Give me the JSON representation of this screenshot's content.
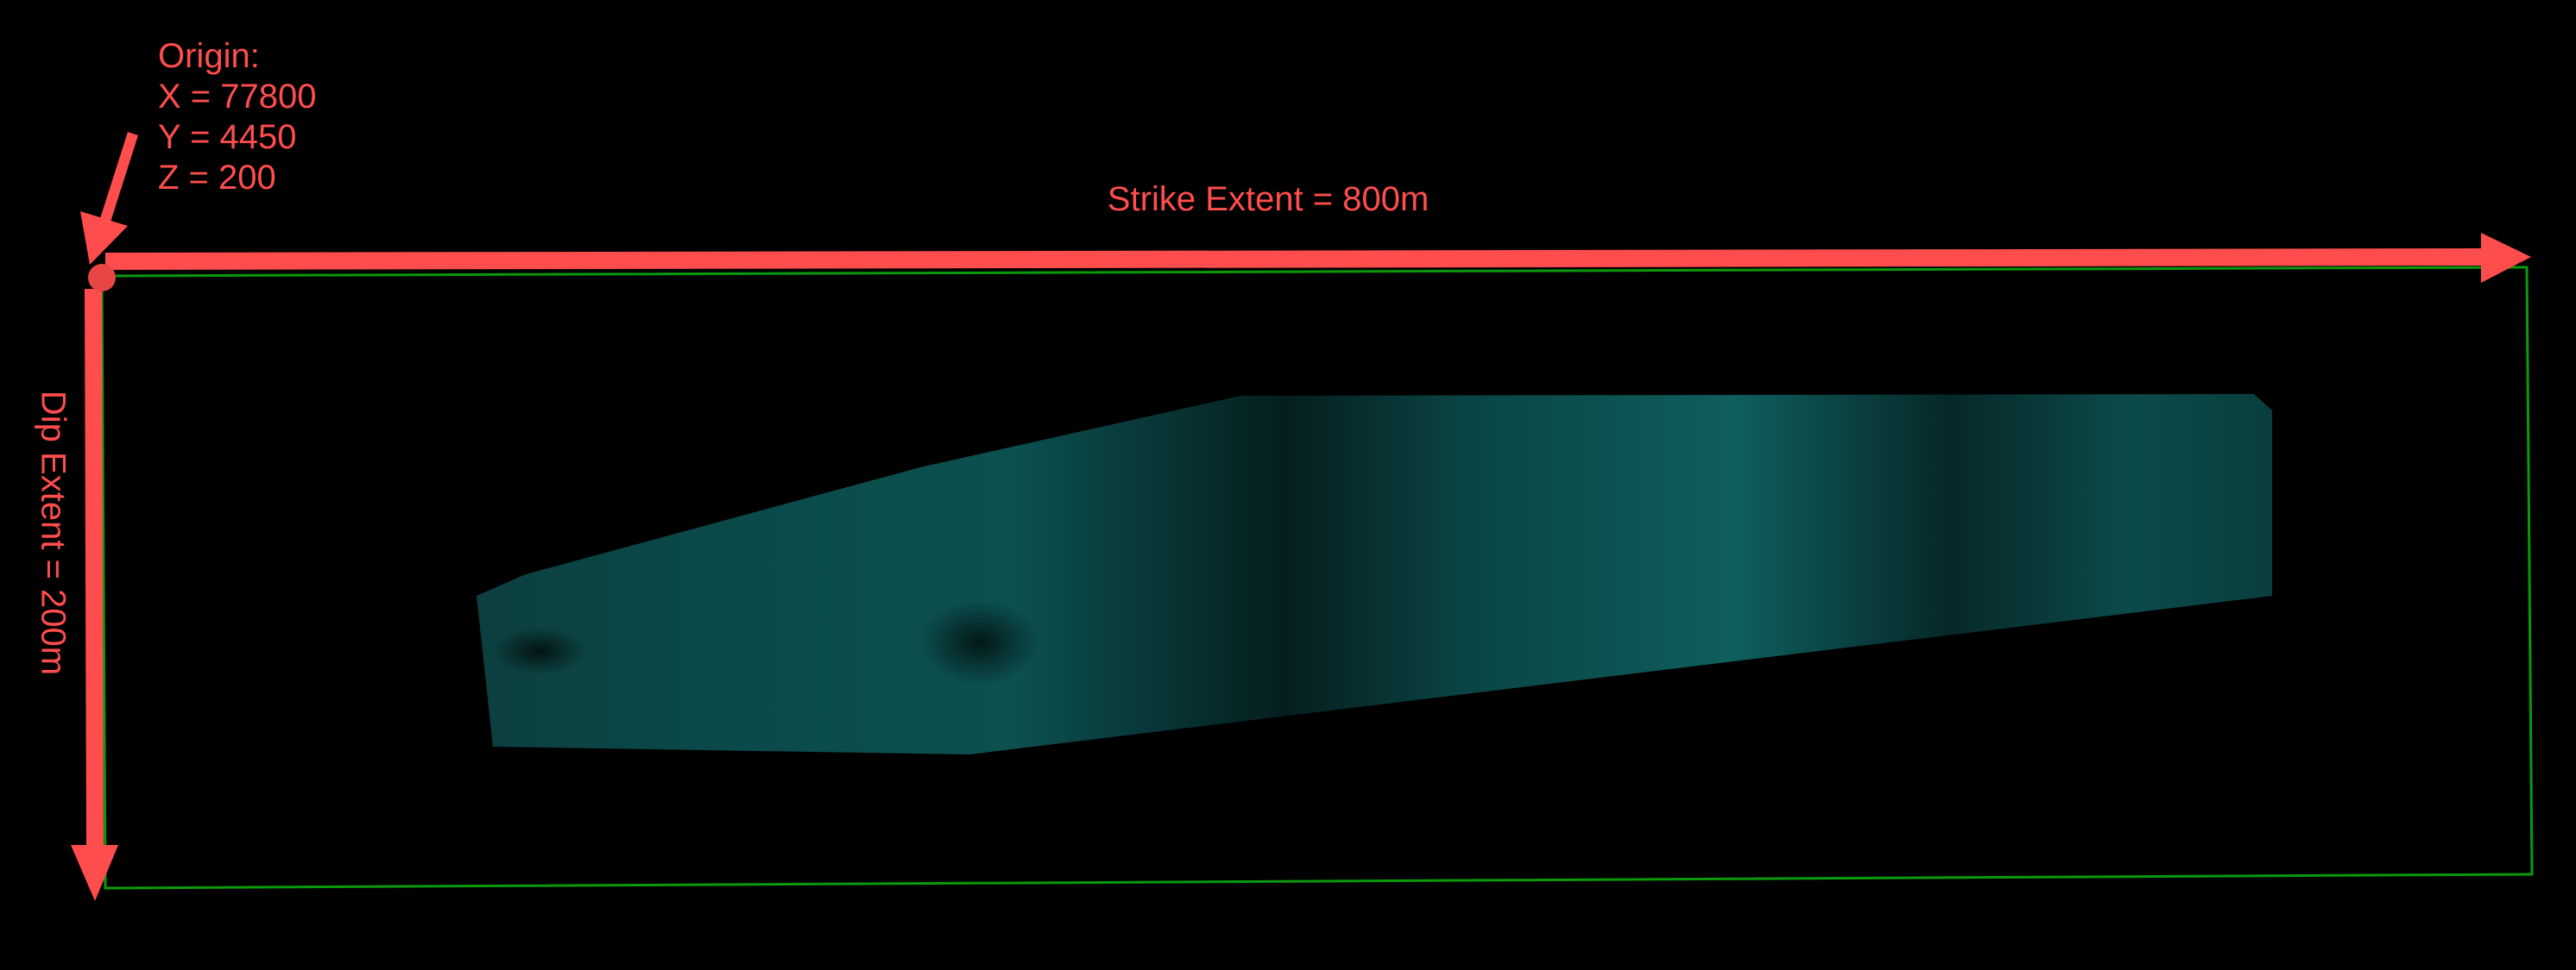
{
  "origin": {
    "title": "Origin:",
    "x": "X = 77800",
    "y": "Y = 4450",
    "z": "Z = 200"
  },
  "strike_label": "Strike Extent = 800m",
  "dip_label": "Dip Extent = 200m",
  "colors": {
    "annotation": "#ff4d4d",
    "boundary": "#0b9a0b",
    "surface": "#0b4f4f",
    "background": "#000000"
  }
}
